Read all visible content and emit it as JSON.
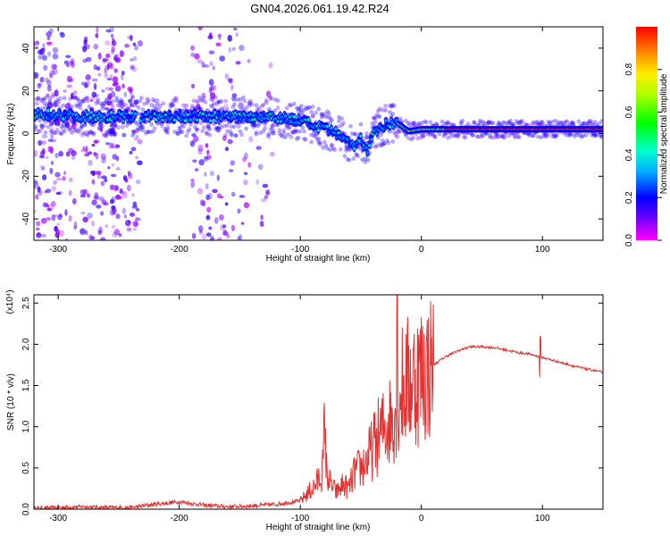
{
  "title": "GN04.2026.061.19.42.R24",
  "colors": {
    "snr_line": "#e53030",
    "axis": "#000000",
    "background": "#ffffff"
  },
  "chart_data": [
    {
      "type": "heatmap",
      "name": "spectrogram",
      "xlabel": "Height of straight line (km)",
      "ylabel": "Frequency (Hz)",
      "xlim": [
        -320,
        150
      ],
      "ylim": [
        -50,
        50
      ],
      "xticks": [
        -300,
        -200,
        -100,
        0,
        100
      ],
      "yticks": [
        -40,
        -20,
        0,
        20,
        40
      ],
      "colorbar": {
        "label": "Normalized spectral amplitude",
        "range": [
          0,
          1
        ],
        "ticks": [
          "0.0",
          "0.2",
          "0.4",
          "0.6",
          "0.8"
        ],
        "colormap": "rainbow"
      },
      "ridge": {
        "description": "main signal ridge, frequency vs height",
        "x": [
          -320,
          -300,
          -280,
          -260,
          -240,
          -220,
          -200,
          -180,
          -160,
          -140,
          -120,
          -100,
          -90,
          -80,
          -70,
          -60,
          -55,
          -50,
          -45,
          -40,
          -30,
          -20,
          -10,
          0,
          20,
          50,
          80,
          100,
          120,
          150
        ],
        "y": [
          9,
          9,
          8,
          8,
          8,
          8,
          8,
          8,
          8,
          8,
          8,
          6,
          4,
          2,
          0,
          -4,
          -6,
          -3,
          -8,
          1,
          4,
          5,
          1,
          2,
          2,
          2,
          2,
          2,
          2,
          2
        ]
      }
    },
    {
      "type": "line",
      "name": "snr",
      "xlabel": "Height of straight line (km)",
      "ylabel": "SNR (10 * v/v)",
      "scale_label": "(x10⁴)",
      "xlim": [
        -320,
        150
      ],
      "ylim": [
        0,
        2.6
      ],
      "xticks": [
        -300,
        -200,
        -100,
        0,
        100
      ],
      "yticks": [
        "0.0",
        "0.5",
        "1.0",
        "1.5",
        "2.0",
        "2.5"
      ],
      "x": [
        -320,
        -300,
        -280,
        -260,
        -240,
        -220,
        -200,
        -180,
        -160,
        -140,
        -120,
        -100,
        -90,
        -85,
        -80,
        -75,
        -70,
        -65,
        -60,
        -55,
        -50,
        -45,
        -40,
        -35,
        -30,
        -25,
        -20,
        -15,
        -10,
        -5,
        0,
        10,
        20,
        30,
        40,
        50,
        60,
        70,
        80,
        90,
        95,
        98,
        100,
        110,
        120,
        130,
        140,
        150
      ],
      "y": [
        0.01,
        0.02,
        0.03,
        0.02,
        0.02,
        0.06,
        0.09,
        0.05,
        0.03,
        0.04,
        0.06,
        0.1,
        0.25,
        0.35,
        0.55,
        0.3,
        0.2,
        0.3,
        0.25,
        0.45,
        0.5,
        0.6,
        0.75,
        0.9,
        1.0,
        1.1,
        1.3,
        1.5,
        1.55,
        1.6,
        1.65,
        1.75,
        1.85,
        1.92,
        1.97,
        1.97,
        1.96,
        1.93,
        1.9,
        1.88,
        1.86,
        1.85,
        1.84,
        1.8,
        1.76,
        1.72,
        1.69,
        1.66
      ]
    }
  ]
}
